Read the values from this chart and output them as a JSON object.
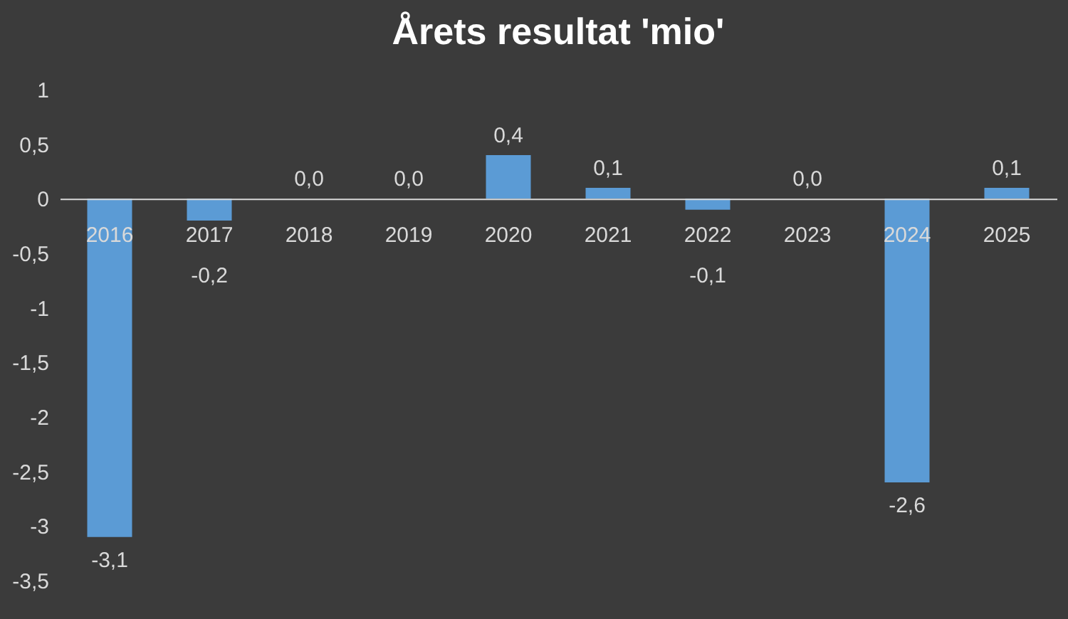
{
  "chart_data": {
    "type": "bar",
    "title": "Årets resultat 'mio'",
    "categories": [
      "2016",
      "2017",
      "2018",
      "2019",
      "2020",
      "2021",
      "2022",
      "2023",
      "2024",
      "2025"
    ],
    "values": [
      -3.1,
      -0.2,
      0.0,
      0.0,
      0.4,
      0.1,
      -0.1,
      0.0,
      -2.6,
      0.1
    ],
    "color": "#5b9bd5",
    "ylim": [
      -3.5,
      1
    ],
    "yticks": [
      {
        "value": 1,
        "label": "1"
      },
      {
        "value": 0.5,
        "label": "0,5"
      },
      {
        "value": 0,
        "label": "0"
      },
      {
        "value": -0.5,
        "label": "-0,5"
      },
      {
        "value": -1,
        "label": "-1"
      },
      {
        "value": -1.5,
        "label": "-1,5"
      },
      {
        "value": -2,
        "label": "-2"
      },
      {
        "value": -2.5,
        "label": "-2,5"
      },
      {
        "value": -3,
        "label": "-3"
      },
      {
        "value": -3.5,
        "label": "-3,5"
      }
    ],
    "value_labels": [
      "-3,1",
      "-0,2",
      "0,0",
      "0,0",
      "0,4",
      "0,1",
      "-0,1",
      "0,0",
      "-2,6",
      "0,1"
    ],
    "grid": false
  }
}
